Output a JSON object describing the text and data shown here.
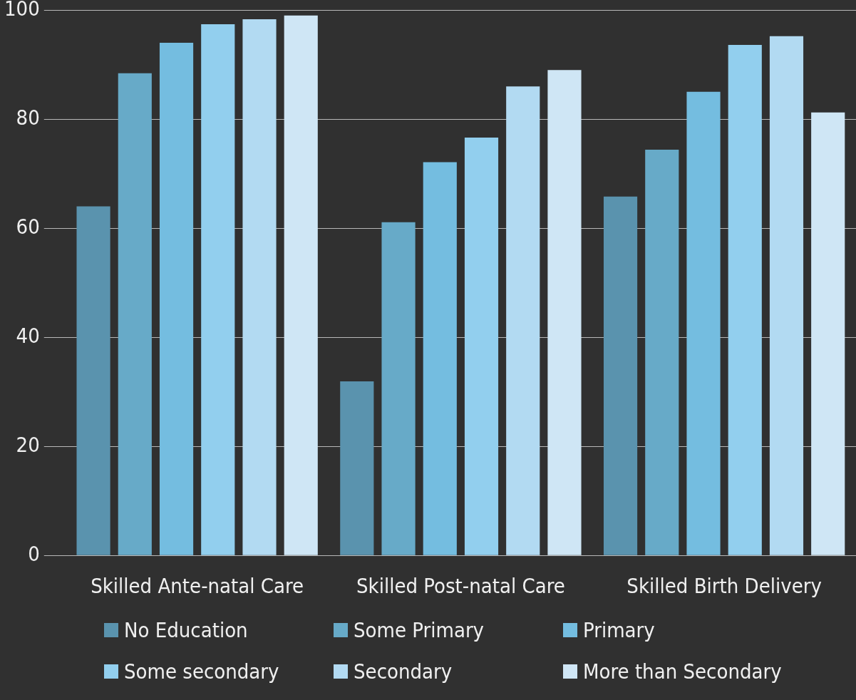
{
  "chart_data": {
    "type": "bar",
    "categories": [
      "Skilled Ante-natal Care",
      "Skilled Post-natal Care",
      "Skilled Birth Delivery"
    ],
    "series": [
      {
        "name": "No Education",
        "color": "#5a93ae",
        "values": [
          64.0,
          31.9,
          65.8
        ]
      },
      {
        "name": "Some Primary",
        "color": "#67aac8",
        "values": [
          88.4,
          61.1,
          74.4
        ]
      },
      {
        "name": "Primary",
        "color": "#74bde0",
        "values": [
          94.0,
          72.1,
          85.0
        ]
      },
      {
        "name": "Some secondary",
        "color": "#92cfee",
        "values": [
          97.4,
          76.6,
          93.6
        ]
      },
      {
        "name": "Secondary",
        "color": "#b2daf2",
        "values": [
          98.3,
          86.0,
          95.2
        ]
      },
      {
        "name": "More than Secondary",
        "color": "#cfe6f5",
        "values": [
          99.0,
          89.0,
          81.2
        ]
      }
    ],
    "ylim": [
      0,
      100
    ],
    "yticks": [
      0,
      20,
      40,
      60,
      80,
      100
    ],
    "grid": "y",
    "legend": "bottom"
  }
}
